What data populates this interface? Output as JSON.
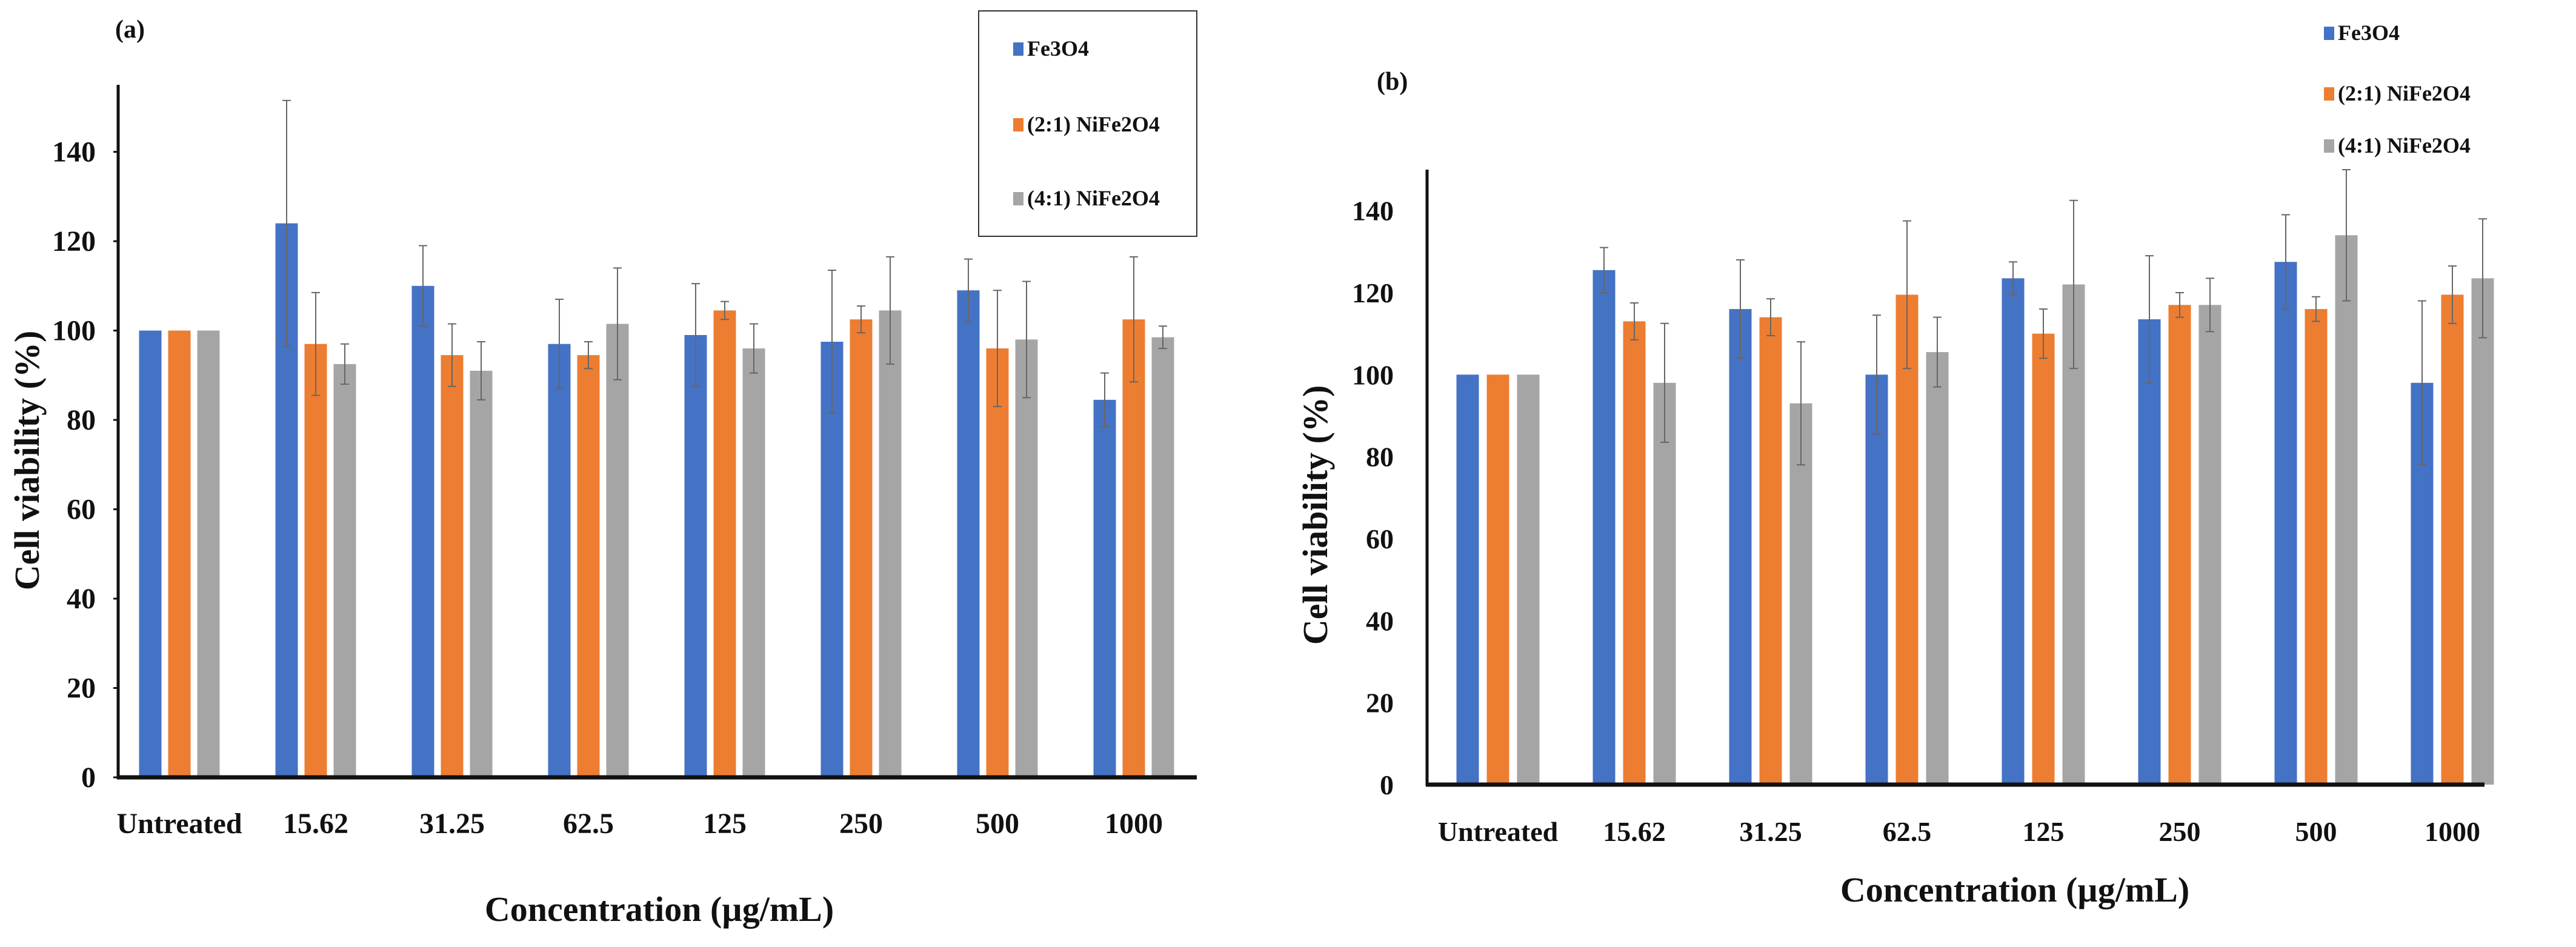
{
  "chart_data": [
    {
      "type": "bar",
      "panel_label": "(a)",
      "title": "",
      "xlabel": "Concentration (µg/mL)",
      "ylabel": "Cell viability (%)",
      "ylim": [
        0,
        155
      ],
      "yticks": [
        0,
        20,
        40,
        60,
        80,
        100,
        120,
        140
      ],
      "grid": false,
      "legend": "top-right, boxed",
      "categories": [
        "Untreated",
        "15.62",
        "31.25",
        "62.5",
        "125",
        "250",
        "500",
        "1000"
      ],
      "series": [
        {
          "name": "Fe3O4",
          "color": "#4472C4",
          "values": [
            100,
            124,
            110,
            97,
            99,
            97.5,
            109,
            84.5
          ],
          "errors": [
            0,
            27.5,
            9,
            10,
            11.5,
            16,
            7,
            6
          ]
        },
        {
          "name": "(2:1) NiFe2O4",
          "color": "#ED7D31",
          "values": [
            100,
            97,
            94.5,
            94.5,
            104.5,
            102.5,
            96,
            102.5
          ],
          "errors": [
            0,
            11.5,
            7,
            3,
            2,
            3,
            13,
            14
          ]
        },
        {
          "name": "(4:1) NiFe2O4",
          "color": "#A5A5A5",
          "values": [
            100,
            92.5,
            91,
            101.5,
            96,
            104.5,
            98,
            98.5
          ],
          "errors": [
            0,
            4.5,
            6.5,
            12.5,
            5.5,
            12,
            13,
            2.5
          ]
        }
      ]
    },
    {
      "type": "bar",
      "panel_label": "(b)",
      "title": "",
      "xlabel": "Concentration (µg/mL)",
      "ylabel": "Cell viability (%)",
      "ylim": [
        0,
        150
      ],
      "yticks": [
        0,
        20,
        40,
        60,
        80,
        100,
        120,
        140
      ],
      "grid": false,
      "legend": "top-right",
      "categories": [
        "Untreated",
        "15.62",
        "31.25",
        "62.5",
        "125",
        "250",
        "500",
        "1000"
      ],
      "series": [
        {
          "name": "Fe3O4",
          "color": "#4472C4",
          "values": [
            100,
            125.5,
            116,
            100,
            123.5,
            113.5,
            127.5,
            98
          ],
          "errors": [
            0,
            5.5,
            12,
            14.5,
            4,
            15.5,
            11.5,
            20
          ]
        },
        {
          "name": "(2:1) NiFe2O4",
          "color": "#ED7D31",
          "values": [
            100,
            113,
            114,
            119.5,
            110,
            117,
            116,
            119.5
          ],
          "errors": [
            0,
            4.5,
            4.5,
            18,
            6,
            3,
            3,
            7
          ]
        },
        {
          "name": "(4:1) NiFe2O4",
          "color": "#A5A5A5",
          "values": [
            100,
            98,
            93,
            105.5,
            122,
            117,
            134,
            123.5
          ],
          "errors": [
            0,
            14.5,
            15,
            8.5,
            20.5,
            6.5,
            16,
            14.5
          ]
        }
      ]
    }
  ]
}
